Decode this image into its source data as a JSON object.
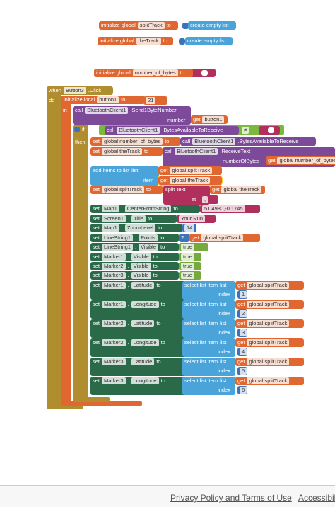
{
  "blocks": [
    {
      "texts": [
        "initialize global",
        "splitTrack",
        "to"
      ]
    },
    {
      "texts": [
        "create empty list"
      ]
    },
    {
      "texts": [
        "initialize global",
        "theTrack",
        "to"
      ]
    },
    {
      "texts": [
        "create empty list"
      ]
    },
    {
      "texts": [
        "initialize global",
        "number_of_bytes",
        "to"
      ]
    },
    {
      "texts": [
        "when",
        "Button3",
        ".Click"
      ]
    },
    {
      "texts": [
        "do"
      ]
    },
    {
      "texts": [
        "initialize local",
        "button1",
        "to"
      ]
    },
    {
      "texts": [
        "21"
      ]
    },
    {
      "texts": [
        "in"
      ]
    },
    {
      "texts": [
        "call",
        "BluetoothClient1",
        ".Send1ByteNumber"
      ]
    },
    {
      "texts": [
        "number"
      ]
    },
    {
      "texts": [
        "get",
        "button1"
      ]
    },
    {
      "texts": [
        "if"
      ]
    },
    {
      "texts": [
        "call",
        "BluetoothClient1",
        ".BytesAvailableToReceive"
      ]
    },
    {
      "texts": [
        "≠"
      ]
    },
    {
      "texts": [
        "then"
      ]
    },
    {
      "texts": [
        "set",
        "global number_of_bytes",
        "to"
      ]
    },
    {
      "texts": [
        "call",
        "BluetoothClient1",
        ".BytesAvailableToReceive"
      ]
    },
    {
      "texts": [
        "set",
        "global theTrack",
        "to"
      ]
    },
    {
      "texts": [
        "call",
        "BluetoothClient1",
        ".ReceiveText"
      ]
    },
    {
      "texts": [
        "numberOfBytes"
      ]
    },
    {
      "texts": [
        "get",
        "global number_of_bytes"
      ]
    },
    {
      "texts": [
        "add items to list",
        "list"
      ]
    },
    {
      "texts": [
        "get",
        "global splitTrack"
      ]
    },
    {
      "texts": [
        "item"
      ]
    },
    {
      "texts": [
        "get",
        "global theTrack"
      ]
    },
    {
      "texts": [
        "set",
        "global splitTrack",
        "to"
      ]
    },
    {
      "texts": [
        "split",
        "text"
      ]
    },
    {
      "texts": [
        "get",
        "global theTrack"
      ]
    },
    {
      "texts": [
        "at"
      ]
    },
    {
      "texts": [
        ","
      ]
    },
    {
      "texts": [
        "set",
        "Map1",
        ".",
        "CenterFromString",
        "to"
      ]
    },
    {
      "texts": [
        "51.4980,-0.1745"
      ]
    },
    {
      "texts": [
        "set",
        "Screen1",
        ".",
        "Title",
        "to"
      ]
    },
    {
      "texts": [
        "Your Run"
      ]
    },
    {
      "texts": [
        "set",
        "Map1",
        ".",
        "ZoomLevel",
        "to"
      ]
    },
    {
      "texts": [
        "14"
      ]
    },
    {
      "texts": [
        "set",
        "LineString1",
        ".",
        "Points",
        "to"
      ]
    },
    {
      "texts": [
        "?"
      ]
    },
    {
      "texts": [
        "get",
        "global splitTrack"
      ]
    },
    {
      "texts": [
        "set",
        "LineString1",
        ".",
        "Visible",
        "to"
      ]
    },
    {
      "texts": [
        "true"
      ]
    },
    {
      "texts": [
        "set",
        "Marker1",
        ".",
        "Visible",
        "to"
      ]
    },
    {
      "texts": [
        "true"
      ]
    },
    {
      "texts": [
        "set",
        "Marker2",
        ".",
        "Visible",
        "to"
      ]
    },
    {
      "texts": [
        "true"
      ]
    },
    {
      "texts": [
        "set",
        "Marker3",
        ".",
        "Visible",
        "to"
      ]
    },
    {
      "texts": [
        "true"
      ]
    },
    {
      "texts": [
        "set",
        "Marker1",
        ".",
        "Latitude",
        "to"
      ]
    },
    {
      "texts": [
        "select list item",
        "list"
      ]
    },
    {
      "texts": [
        "get",
        "global splitTrack"
      ]
    },
    {
      "texts": [
        "index"
      ]
    },
    {
      "texts": [
        "1"
      ]
    },
    {
      "texts": [
        "set",
        "Marker1",
        ".",
        "Longitude",
        "to"
      ]
    },
    {
      "texts": [
        "select list item",
        "list"
      ]
    },
    {
      "texts": [
        "get",
        "global splitTrack"
      ]
    },
    {
      "texts": [
        "index"
      ]
    },
    {
      "texts": [
        "2"
      ]
    },
    {
      "texts": [
        "set",
        "Marker2",
        ".",
        "Latitude",
        "to"
      ]
    },
    {
      "texts": [
        "select list item",
        "list"
      ]
    },
    {
      "texts": [
        "get",
        "global splitTrack"
      ]
    },
    {
      "texts": [
        "index"
      ]
    },
    {
      "texts": [
        "3"
      ]
    },
    {
      "texts": [
        "set",
        "Marker2",
        ".",
        "Longitude",
        "to"
      ]
    },
    {
      "texts": [
        "select list item",
        "list"
      ]
    },
    {
      "texts": [
        "get",
        "global splitTrack"
      ]
    },
    {
      "texts": [
        "index"
      ]
    },
    {
      "texts": [
        "4"
      ]
    },
    {
      "texts": [
        "set",
        "Marker3",
        ".",
        "Latitude",
        "to"
      ]
    },
    {
      "texts": [
        "select list item",
        "list"
      ]
    },
    {
      "texts": [
        "get",
        "global splitTrack"
      ]
    },
    {
      "texts": [
        "index"
      ]
    },
    {
      "texts": [
        "5"
      ]
    },
    {
      "texts": [
        "set",
        "Marker3",
        ".",
        "Longitude",
        "to"
      ]
    },
    {
      "texts": [
        "select list item",
        "list"
      ]
    },
    {
      "texts": [
        "get",
        "global splitTrack"
      ]
    },
    {
      "texts": [
        "index"
      ]
    },
    {
      "texts": [
        "6"
      ]
    }
  ],
  "footer": {
    "links": [
      "Privacy Policy and Terms of Use",
      "Accessibility"
    ]
  }
}
